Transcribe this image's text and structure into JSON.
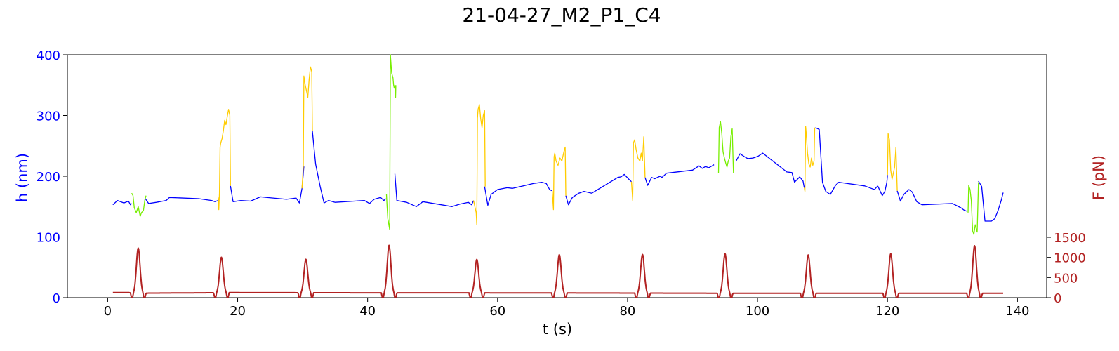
{
  "chart_data": {
    "type": "line",
    "title": "21-04-27_M2_P1_C4",
    "xlabel": "t (s)",
    "ylabel_left": "h (nm)",
    "ylabel_right": "F (pN)",
    "xlim": [
      -6.2,
      144.5
    ],
    "ylim_left": [
      0,
      400
    ],
    "ylim_right": [
      0,
      1500
    ],
    "x_ticks": [
      0,
      20,
      40,
      60,
      80,
      100,
      120,
      140
    ],
    "y_ticks_left": [
      0,
      100,
      200,
      300,
      400
    ],
    "y_ticks_right": [
      0,
      500,
      1000,
      1500
    ],
    "grid": false,
    "legend": "none",
    "colors": {
      "height_baseline": "#0000ff",
      "height_yellow": "#ffcc00",
      "height_green": "#77ee00",
      "force": "#b22222",
      "left_axis": "#0000ff",
      "right_axis": "#b22222"
    },
    "series": [
      {
        "color_key": "height_baseline",
        "axis": "left",
        "segments": [
          [
            [
              0.8,
              153
            ],
            [
              1.5,
              160
            ],
            [
              2.5,
              156
            ],
            [
              3.2,
              159
            ],
            [
              3.5,
              153
            ],
            [
              3.7,
              155
            ]
          ],
          [
            [
              5.8,
              163
            ],
            [
              6.3,
              155
            ],
            [
              7.5,
              157
            ],
            [
              9,
              160
            ],
            [
              9.5,
              165
            ],
            [
              14,
              163
            ],
            [
              16,
              160
            ],
            [
              16.5,
              158
            ],
            [
              17,
              160
            ]
          ],
          [
            [
              18.9,
              184
            ],
            [
              19.3,
              158
            ],
            [
              20.5,
              160
            ],
            [
              22,
              159
            ],
            [
              23.5,
              166
            ],
            [
              27.5,
              162
            ],
            [
              29,
              164
            ],
            [
              29.5,
              156
            ],
            [
              29.9,
              180
            ],
            [
              30.2,
              216
            ]
          ],
          [
            [
              31.5,
              274
            ],
            [
              32,
              220
            ],
            [
              32.7,
              183
            ],
            [
              33.3,
              156
            ],
            [
              34,
              160
            ],
            [
              35,
              157
            ],
            [
              39.5,
              160
            ],
            [
              40.3,
              155
            ],
            [
              41,
              162
            ],
            [
              42,
              165
            ],
            [
              42.5,
              160
            ],
            [
              42.8,
              163
            ]
          ],
          [
            [
              44.2,
              204
            ],
            [
              44.5,
              160
            ],
            [
              46,
              157
            ],
            [
              47.5,
              150
            ],
            [
              48.5,
              158
            ],
            [
              53,
              150
            ],
            [
              54.2,
              154
            ],
            [
              55.5,
              157
            ],
            [
              56,
              153
            ],
            [
              56.3,
              160
            ]
          ],
          [
            [
              58,
              183
            ],
            [
              58.5,
              152
            ],
            [
              59,
              170
            ],
            [
              60,
              178
            ],
            [
              61.5,
              181
            ],
            [
              62.3,
              180
            ],
            [
              63.5,
              183
            ],
            [
              65.5,
              188
            ],
            [
              66.8,
              190
            ],
            [
              67.5,
              188
            ],
            [
              68,
              178
            ],
            [
              68.4,
              176
            ]
          ],
          [
            [
              70.5,
              168
            ],
            [
              70.9,
              153
            ],
            [
              71.5,
              165
            ],
            [
              72.5,
              172
            ],
            [
              73.3,
              175
            ],
            [
              74.5,
              172
            ],
            [
              78.5,
              198
            ],
            [
              79,
              199
            ],
            [
              79.5,
              203
            ],
            [
              80.2,
              195
            ],
            [
              80.6,
              191
            ]
          ],
          [
            [
              82.7,
              198
            ],
            [
              83.1,
              185
            ],
            [
              83.7,
              198
            ],
            [
              84.2,
              196
            ],
            [
              85,
              200
            ],
            [
              85.3,
              198
            ],
            [
              86,
              205
            ],
            [
              90,
              210
            ],
            [
              91,
              217
            ],
            [
              91.5,
              213
            ],
            [
              92,
              216
            ],
            [
              92.5,
              214
            ],
            [
              93,
              217
            ],
            [
              93.3,
              219
            ]
          ],
          [
            [
              96.7,
              225
            ],
            [
              97.3,
              237
            ],
            [
              98,
              232
            ],
            [
              98.5,
              229
            ],
            [
              99.3,
              230
            ],
            [
              100.1,
              233
            ],
            [
              100.8,
              238
            ],
            [
              104.5,
              207
            ],
            [
              105.3,
              206
            ],
            [
              105.7,
              190
            ],
            [
              106.5,
              199
            ],
            [
              107,
              192
            ],
            [
              107.2,
              181
            ]
          ],
          [
            [
              108.9,
              280
            ],
            [
              109.5,
              277
            ],
            [
              110,
              190
            ],
            [
              110.5,
              175
            ],
            [
              111.2,
              170
            ],
            [
              112,
              185
            ],
            [
              112.5,
              190
            ],
            [
              116.5,
              184
            ],
            [
              117.5,
              180
            ],
            [
              118,
              178
            ],
            [
              118.5,
              184
            ],
            [
              119.2,
              168
            ],
            [
              119.6,
              175
            ],
            [
              119.9,
              190
            ],
            [
              120,
              202
            ]
          ],
          [
            [
              121.5,
              176
            ],
            [
              122,
              159
            ],
            [
              122.5,
              170
            ],
            [
              123.3,
              178
            ],
            [
              123.8,
              174
            ],
            [
              124.5,
              158
            ],
            [
              125.3,
              153
            ],
            [
              130,
              155
            ],
            [
              131.3,
              148
            ],
            [
              131.8,
              144
            ],
            [
              132.3,
              142
            ]
          ],
          [
            [
              134,
              192
            ],
            [
              134.5,
              183
            ],
            [
              135,
              126
            ],
            [
              136,
              126
            ],
            [
              136.5,
              130
            ],
            [
              137,
              143
            ],
            [
              137.5,
              160
            ],
            [
              137.8,
              173
            ]
          ]
        ]
      },
      {
        "color_key": "height_green",
        "axis": "left",
        "segments": [
          [
            [
              3.7,
              172
            ],
            [
              3.9,
              168
            ],
            [
              4.1,
              148
            ],
            [
              4.4,
              140
            ],
            [
              4.7,
              150
            ],
            [
              5,
              134
            ],
            [
              5.2,
              140
            ],
            [
              5.5,
              143
            ],
            [
              5.7,
              160
            ],
            [
              5.9,
              168
            ]
          ],
          [
            [
              42.9,
              170
            ],
            [
              43.0,
              150
            ],
            [
              43.1,
              130
            ],
            [
              43.2,
              125
            ],
            [
              43.3,
              118
            ],
            [
              43.4,
              112
            ],
            [
              43.5,
              400
            ],
            [
              43.6,
              385
            ],
            [
              43.7,
              370
            ],
            [
              43.9,
              362
            ],
            [
              44,
              350
            ],
            [
              44.1,
              345
            ],
            [
              44.2,
              350
            ],
            [
              44.3,
              330
            ],
            [
              44.35,
              350
            ]
          ],
          [
            [
              94.0,
              205
            ],
            [
              94.1,
              280
            ],
            [
              94.3,
              290
            ],
            [
              94.5,
              270
            ],
            [
              94.7,
              240
            ],
            [
              94.9,
              230
            ],
            [
              95.1,
              222
            ],
            [
              95.3,
              215
            ],
            [
              95.5,
              225
            ],
            [
              95.7,
              230
            ],
            [
              95.9,
              265
            ],
            [
              96.1,
              278
            ],
            [
              96.3,
              205
            ]
          ],
          [
            [
              132.4,
              140
            ],
            [
              132.5,
              185
            ],
            [
              132.7,
              178
            ],
            [
              132.9,
              160
            ],
            [
              133.1,
              110
            ],
            [
              133.3,
              104
            ],
            [
              133.5,
              120
            ],
            [
              133.7,
              112
            ],
            [
              133.8,
              108
            ],
            [
              134,
              190
            ]
          ]
        ]
      },
      {
        "color_key": "height_yellow",
        "axis": "left",
        "segments": [
          [
            [
              17.0,
              165
            ],
            [
              17.1,
              145
            ],
            [
              17.2,
              172
            ],
            [
              17.3,
              248
            ],
            [
              17.4,
              255
            ],
            [
              17.6,
              262
            ],
            [
              17.8,
              275
            ],
            [
              18,
              292
            ],
            [
              18.2,
              285
            ],
            [
              18.4,
              298
            ],
            [
              18.6,
              310
            ],
            [
              18.8,
              300
            ],
            [
              18.9,
              184
            ]
          ],
          [
            [
              29.9,
              180
            ],
            [
              30.1,
              215
            ],
            [
              30.2,
              365
            ],
            [
              30.4,
              350
            ],
            [
              30.6,
              340
            ],
            [
              30.8,
              330
            ],
            [
              31,
              360
            ],
            [
              31.2,
              380
            ],
            [
              31.4,
              372
            ],
            [
              31.5,
              274
            ]
          ],
          [
            [
              56.3,
              160
            ],
            [
              56.5,
              150
            ],
            [
              56.7,
              140
            ],
            [
              56.8,
              120
            ],
            [
              56.9,
              295
            ],
            [
              57.0,
              310
            ],
            [
              57.2,
              318
            ],
            [
              57.4,
              295
            ],
            [
              57.6,
              280
            ],
            [
              57.8,
              300
            ],
            [
              58,
              308
            ],
            [
              58.1,
              183
            ]
          ],
          [
            [
              68.4,
              176
            ],
            [
              68.6,
              145
            ],
            [
              68.7,
              232
            ],
            [
              68.8,
              238
            ],
            [
              69,
              225
            ],
            [
              69.3,
              218
            ],
            [
              69.6,
              230
            ],
            [
              69.9,
              225
            ],
            [
              70.2,
              240
            ],
            [
              70.4,
              248
            ],
            [
              70.5,
              168
            ]
          ],
          [
            [
              80.6,
              191
            ],
            [
              80.8,
              160
            ],
            [
              80.9,
              255
            ],
            [
              81.1,
              260
            ],
            [
              81.3,
              245
            ],
            [
              81.6,
              230
            ],
            [
              81.9,
              225
            ],
            [
              82.1,
              238
            ],
            [
              82.3,
              225
            ],
            [
              82.5,
              265
            ],
            [
              82.7,
              198
            ]
          ],
          [
            [
              107.2,
              181
            ],
            [
              107.3,
              175
            ],
            [
              107.4,
              282
            ],
            [
              107.5,
              270
            ],
            [
              107.7,
              238
            ],
            [
              107.9,
              220
            ],
            [
              108.1,
              215
            ],
            [
              108.3,
              230
            ],
            [
              108.5,
              218
            ],
            [
              108.7,
              225
            ],
            [
              108.8,
              280
            ]
          ],
          [
            [
              120.0,
              202
            ],
            [
              120.1,
              270
            ],
            [
              120.3,
              260
            ],
            [
              120.5,
              210
            ],
            [
              120.7,
              195
            ],
            [
              120.9,
              205
            ],
            [
              121.1,
              215
            ],
            [
              121.3,
              248
            ],
            [
              121.5,
              176
            ]
          ]
        ]
      },
      {
        "name": "F (pN)",
        "color_key": "force",
        "axis": "right",
        "peaks": [
          4.7,
          17.5,
          30.5,
          43.3,
          56.8,
          69.5,
          82.3,
          95.0,
          107.8,
          120.5,
          133.4
        ],
        "peak_values": [
          1120,
          880,
          830,
          1180,
          830,
          950,
          960,
          980,
          950,
          980,
          1180
        ],
        "baseline": [
          [
            0.8,
            125
          ],
          [
            3.3,
            125
          ],
          [
            3.7,
            110
          ],
          [
            18.9,
            125
          ],
          [
            43.3,
            120
          ],
          [
            56.8,
            120
          ],
          [
            95.0,
            110
          ],
          [
            107.8,
            110
          ],
          [
            120.5,
            110
          ],
          [
            137.8,
            110
          ]
        ]
      }
    ]
  }
}
